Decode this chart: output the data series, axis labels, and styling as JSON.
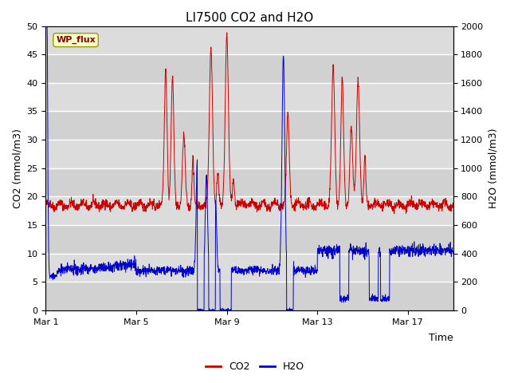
{
  "title": "LI7500 CO2 and H2O",
  "xlabel": "Time",
  "ylabel_left": "CO2 (mmol/m3)",
  "ylabel_right": "H2O (mmol/m3)",
  "ylim_left": [
    0,
    50
  ],
  "ylim_right": [
    0,
    2000
  ],
  "yticks_left": [
    0,
    5,
    10,
    15,
    20,
    25,
    30,
    35,
    40,
    45,
    50
  ],
  "yticks_right": [
    0,
    200,
    400,
    600,
    800,
    1000,
    1200,
    1400,
    1600,
    1800,
    2000
  ],
  "xlim": [
    0,
    18
  ],
  "xtick_positions": [
    0,
    4,
    8,
    12,
    16
  ],
  "xtick_labels": [
    "Mar 1",
    "Mar 5",
    "Mar 9",
    "Mar 13",
    "Mar 17"
  ],
  "color_co2": "#cc0000",
  "color_h2o": "#0000cc",
  "fig_bg_color": "#ffffff",
  "plot_bg_color": "#dcdcdc",
  "grid_color": "#ffffff",
  "legend_label_co2": "CO2",
  "legend_label_h2o": "H2O",
  "watermark_text": "WP_flux",
  "watermark_color": "#8b0000",
  "watermark_bg": "#ffffcc",
  "watermark_edge": "#999900",
  "title_fontsize": 11,
  "axis_label_fontsize": 9,
  "tick_fontsize": 8,
  "legend_fontsize": 9
}
